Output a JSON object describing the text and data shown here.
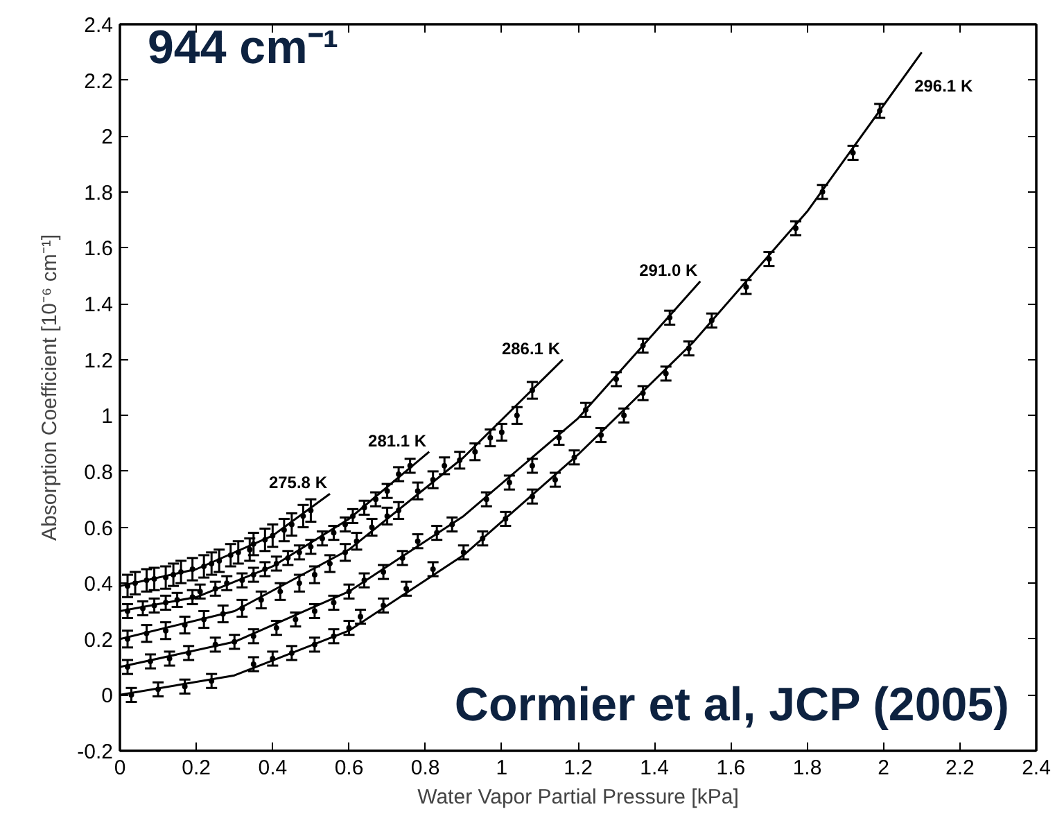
{
  "chart_data": {
    "type": "scatter",
    "title": "944 cm⁻¹",
    "xlabel": "Water Vapor Partial Pressure [kPa]",
    "ylabel": "Absorption Coefficient [10⁻⁶ cm⁻¹]",
    "annotations": [
      "Cormier et al, JCP (2005)"
    ],
    "xlim": [
      0,
      2.4
    ],
    "xticks": [
      0,
      0.2,
      0.4,
      0.6,
      0.8,
      1,
      1.2,
      1.4,
      1.6,
      1.8,
      2,
      2.2,
      2.4
    ],
    "ylim": [
      -0.2,
      2.4
    ],
    "yticks": [
      -0.2,
      0,
      0.2,
      0.4,
      0.6,
      0.8,
      1,
      1.2,
      1.4,
      1.6,
      1.8,
      2,
      2.2,
      2.4
    ],
    "grid": false,
    "marker": "circle",
    "series": [
      {
        "name": "275.8 K",
        "color": "#000000",
        "x": [
          0.02,
          0.04,
          0.07,
          0.09,
          0.12,
          0.14,
          0.16,
          0.19,
          0.22,
          0.24,
          0.26,
          0.29,
          0.31,
          0.34,
          0.35,
          0.38,
          0.4,
          0.43,
          0.45,
          0.48,
          0.5
        ],
        "values": [
          0.39,
          0.4,
          0.41,
          0.415,
          0.42,
          0.43,
          0.44,
          0.45,
          0.46,
          0.47,
          0.48,
          0.5,
          0.51,
          0.52,
          0.54,
          0.555,
          0.57,
          0.59,
          0.61,
          0.64,
          0.66
        ],
        "errors": [
          0.04,
          0.04,
          0.04,
          0.04,
          0.04,
          0.04,
          0.04,
          0.04,
          0.04,
          0.04,
          0.04,
          0.04,
          0.04,
          0.04,
          0.04,
          0.04,
          0.04,
          0.04,
          0.04,
          0.04,
          0.04
        ]
      },
      {
        "type": "line",
        "marker": "none",
        "color": "#000000",
        "x": [
          0,
          0.2,
          0.4,
          0.55
        ],
        "values": [
          0.39,
          0.45,
          0.57,
          0.72
        ]
      },
      {
        "name": "281.1 K",
        "color": "#000000",
        "x": [
          0.02,
          0.06,
          0.09,
          0.12,
          0.15,
          0.19,
          0.21,
          0.25,
          0.28,
          0.32,
          0.35,
          0.38,
          0.41,
          0.44,
          0.47,
          0.5,
          0.53,
          0.56,
          0.59,
          0.61,
          0.64,
          0.67,
          0.7,
          0.73,
          0.76
        ],
        "values": [
          0.3,
          0.31,
          0.32,
          0.33,
          0.34,
          0.35,
          0.37,
          0.38,
          0.4,
          0.41,
          0.43,
          0.45,
          0.47,
          0.49,
          0.51,
          0.53,
          0.56,
          0.58,
          0.61,
          0.64,
          0.67,
          0.7,
          0.73,
          0.79,
          0.82
        ],
        "errors": [
          0.025,
          0.025,
          0.025,
          0.025,
          0.025,
          0.025,
          0.025,
          0.025,
          0.025,
          0.025,
          0.025,
          0.025,
          0.025,
          0.025,
          0.025,
          0.025,
          0.025,
          0.025,
          0.025,
          0.025,
          0.025,
          0.025,
          0.025,
          0.025,
          0.025
        ]
      },
      {
        "type": "line",
        "marker": "none",
        "color": "#000000",
        "x": [
          0,
          0.2,
          0.4,
          0.6,
          0.81
        ],
        "values": [
          0.3,
          0.35,
          0.46,
          0.63,
          0.87
        ]
      },
      {
        "name": "286.1 K",
        "color": "#000000",
        "x": [
          0.02,
          0.07,
          0.12,
          0.17,
          0.22,
          0.27,
          0.32,
          0.37,
          0.42,
          0.47,
          0.51,
          0.55,
          0.59,
          0.62,
          0.66,
          0.7,
          0.73,
          0.78,
          0.82,
          0.85,
          0.89,
          0.93,
          0.97,
          1.0,
          1.04,
          1.08
        ],
        "values": [
          0.2,
          0.22,
          0.23,
          0.25,
          0.27,
          0.29,
          0.31,
          0.34,
          0.37,
          0.4,
          0.43,
          0.47,
          0.51,
          0.55,
          0.6,
          0.64,
          0.66,
          0.73,
          0.77,
          0.82,
          0.84,
          0.87,
          0.92,
          0.94,
          1.0,
          1.09
        ],
        "errors": [
          0.03,
          0.03,
          0.03,
          0.03,
          0.03,
          0.03,
          0.03,
          0.03,
          0.03,
          0.03,
          0.03,
          0.03,
          0.03,
          0.03,
          0.03,
          0.03,
          0.03,
          0.03,
          0.03,
          0.03,
          0.03,
          0.03,
          0.03,
          0.03,
          0.03,
          0.03
        ]
      },
      {
        "type": "line",
        "marker": "none",
        "color": "#000000",
        "x": [
          0,
          0.3,
          0.6,
          0.9,
          1.16
        ],
        "values": [
          0.2,
          0.3,
          0.52,
          0.85,
          1.2
        ]
      },
      {
        "name": "291.0 K",
        "color": "#000000",
        "x": [
          0.02,
          0.08,
          0.13,
          0.18,
          0.25,
          0.3,
          0.35,
          0.41,
          0.46,
          0.51,
          0.56,
          0.6,
          0.64,
          0.69,
          0.74,
          0.78,
          0.83,
          0.87,
          0.96,
          1.02,
          1.08,
          1.15,
          1.22,
          1.3,
          1.37,
          1.44
        ],
        "values": [
          0.1,
          0.12,
          0.13,
          0.15,
          0.18,
          0.19,
          0.21,
          0.24,
          0.27,
          0.3,
          0.33,
          0.37,
          0.41,
          0.44,
          0.49,
          0.55,
          0.58,
          0.61,
          0.7,
          0.76,
          0.82,
          0.92,
          1.02,
          1.13,
          1.25,
          1.35
        ],
        "errors": [
          0.025,
          0.025,
          0.025,
          0.025,
          0.025,
          0.025,
          0.025,
          0.025,
          0.025,
          0.025,
          0.025,
          0.025,
          0.025,
          0.025,
          0.025,
          0.025,
          0.025,
          0.025,
          0.025,
          0.025,
          0.025,
          0.025,
          0.025,
          0.025,
          0.025,
          0.025
        ]
      },
      {
        "type": "line",
        "marker": "none",
        "color": "#000000",
        "x": [
          0,
          0.3,
          0.6,
          0.9,
          1.2,
          1.52
        ],
        "values": [
          0.1,
          0.19,
          0.37,
          0.64,
          0.99,
          1.48
        ]
      },
      {
        "name": "296.1 K",
        "color": "#000000",
        "x": [
          0.03,
          0.1,
          0.17,
          0.24,
          0.35,
          0.4,
          0.45,
          0.51,
          0.56,
          0.6,
          0.63,
          0.69,
          0.75,
          0.82,
          0.9,
          0.95,
          1.01,
          1.08,
          1.14,
          1.19,
          1.26,
          1.32,
          1.37,
          1.43,
          1.49,
          1.55,
          1.64,
          1.7,
          1.77,
          1.84,
          1.92,
          1.99
        ],
        "values": [
          0.0,
          0.02,
          0.03,
          0.05,
          0.11,
          0.13,
          0.15,
          0.18,
          0.21,
          0.24,
          0.28,
          0.32,
          0.38,
          0.45,
          0.51,
          0.56,
          0.63,
          0.71,
          0.77,
          0.85,
          0.93,
          1.0,
          1.08,
          1.15,
          1.24,
          1.34,
          1.46,
          1.56,
          1.67,
          1.8,
          1.94,
          2.09
        ],
        "errors": [
          0.025,
          0.025,
          0.025,
          0.025,
          0.025,
          0.025,
          0.025,
          0.025,
          0.025,
          0.025,
          0.025,
          0.025,
          0.025,
          0.025,
          0.025,
          0.025,
          0.025,
          0.025,
          0.025,
          0.025,
          0.025,
          0.025,
          0.025,
          0.025,
          0.025,
          0.025,
          0.025,
          0.025,
          0.025,
          0.025,
          0.025,
          0.025
        ]
      },
      {
        "type": "line",
        "marker": "none",
        "color": "#000000",
        "x": [
          0,
          0.3,
          0.6,
          0.9,
          1.2,
          1.5,
          1.8,
          2.1
        ],
        "values": [
          0,
          0.07,
          0.23,
          0.5,
          0.86,
          1.26,
          1.73,
          2.3
        ]
      }
    ]
  }
}
